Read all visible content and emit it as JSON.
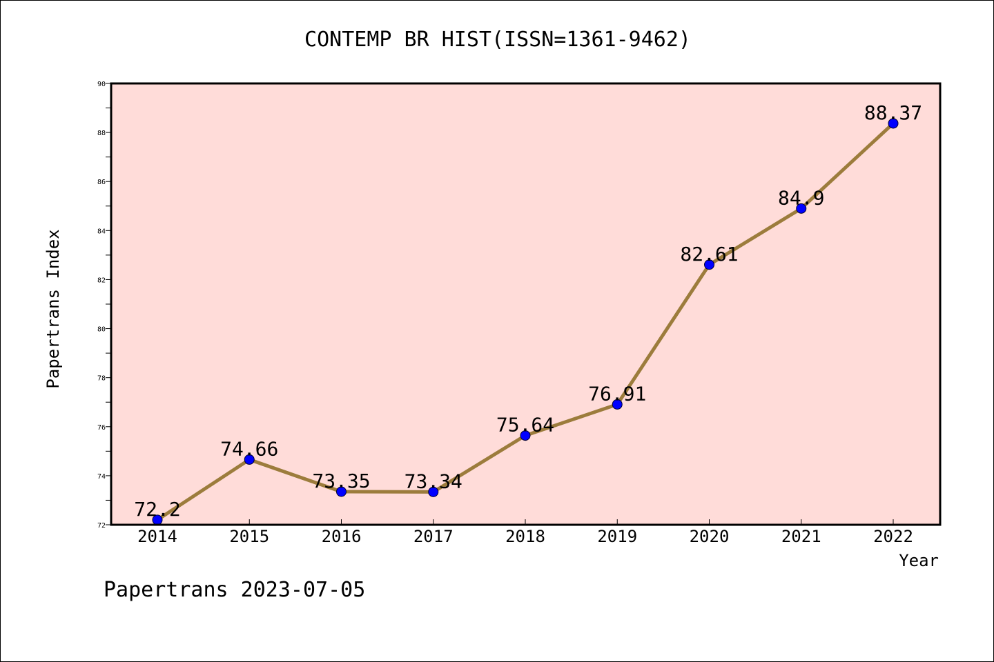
{
  "chart_data": {
    "type": "line",
    "title": "CONTEMP BR HIST(ISSN=1361-9462)",
    "xlabel": "Year",
    "ylabel": "Papertrans Index",
    "categories": [
      "2014",
      "2015",
      "2016",
      "2017",
      "2018",
      "2019",
      "2020",
      "2021",
      "2022"
    ],
    "series": [
      {
        "values": [
          72.2,
          74.66,
          73.35,
          73.34,
          75.64,
          76.91,
          82.61,
          84.9,
          88.37
        ],
        "labels": [
          "72.2",
          "74.66",
          "73.35",
          "73.34",
          "75.64",
          "76.91",
          "82.61",
          "84.9",
          "88.37"
        ]
      }
    ],
    "ylim": [
      72,
      90
    ],
    "yticks": [
      "72",
      "74",
      "76",
      "78",
      "80",
      "82",
      "84",
      "86",
      "88",
      "90"
    ],
    "grid": false,
    "colors": {
      "plot_background": "#ffdcd9",
      "line": "#9c7c3c",
      "marker": "#0000ff"
    }
  },
  "footer": {
    "text": "Papertrans 2023-07-05"
  }
}
